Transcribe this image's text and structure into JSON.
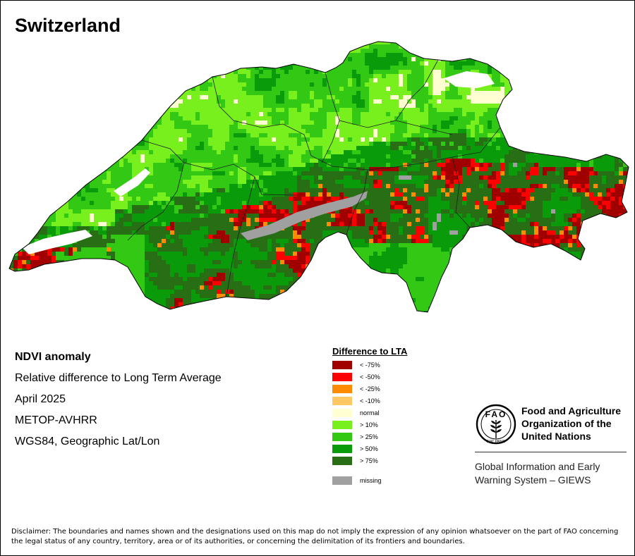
{
  "title": "Switzerland",
  "meta": {
    "heading": "NDVI anomaly",
    "description": "Relative difference to Long Term Average",
    "period": "April 2025",
    "sensor": "METOP-AVHRR",
    "projection": "WGS84, Geographic Lat/Lon"
  },
  "legend": {
    "title": "Difference to LTA",
    "classes": [
      {
        "label": "< -75%",
        "color": "#a00000"
      },
      {
        "label": "< -50%",
        "color": "#ff0000"
      },
      {
        "label": "< -25%",
        "color": "#ff8c00"
      },
      {
        "label": "< -10%",
        "color": "#ffc864"
      },
      {
        "label": "normal",
        "color": "#ffffd2"
      },
      {
        "label": "> 10%",
        "color": "#78f01e"
      },
      {
        "label": "> 25%",
        "color": "#32c814"
      },
      {
        "label": "> 50%",
        "color": "#0a9b0a"
      },
      {
        "label": "> 75%",
        "color": "#286e14"
      }
    ],
    "missing": {
      "label": "missing",
      "color": "#a0a0a0"
    }
  },
  "organization": {
    "name_lines": [
      "Food and Agriculture",
      "Organization of the",
      "United Nations"
    ],
    "logo_letters": "FAO",
    "logo_motto": "FIAT PANIS",
    "program_lines": [
      "Global Information and Early",
      "Warning System – GIEWS"
    ]
  },
  "disclaimer": "Disclaimer: The boundaries and names shown and the designations used on this map do not imply the expression of any opinion whatsoever on the part of FAO concerning the legal status of any country, territory, area or of its authorities, or concerning the delimitation of its frontiers and boundaries."
}
